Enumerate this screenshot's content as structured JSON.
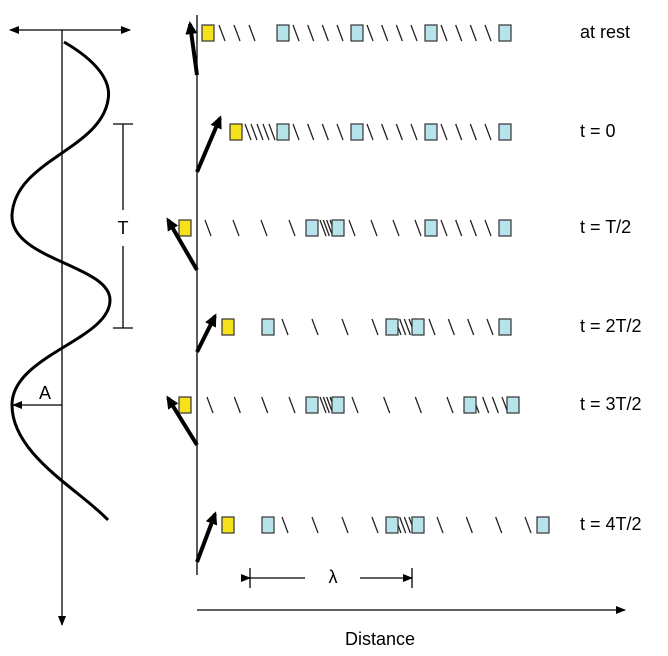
{
  "labels": {
    "rows": [
      "at rest",
      "t = 0",
      "t = T/2",
      "t = 2T/2",
      "t = 3T/2",
      "t = 4T/2"
    ],
    "period": "T",
    "amplitude": "A",
    "wavelength": "λ",
    "x_axis": "Distance"
  }
}
